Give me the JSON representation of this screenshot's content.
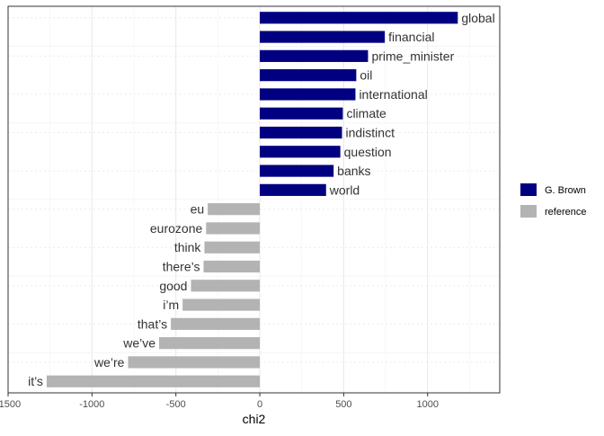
{
  "chart_data": {
    "type": "bar",
    "orientation": "horizontal",
    "xlabel": "chi2",
    "ylabel": "",
    "xlim": [
      -1500,
      1430
    ],
    "xticks": [
      -1500,
      -1000,
      -500,
      0,
      500,
      1000
    ],
    "xtick_labels": [
      "-1500",
      "-1000",
      "-500",
      "0",
      "500",
      "1000"
    ],
    "grid": true,
    "legend_position": "right",
    "categories": [
      "global",
      "financial",
      "prime_minister",
      "oil",
      "international",
      "climate",
      "indistinct",
      "question",
      "banks",
      "world",
      "eu",
      "eurozone",
      "think",
      "there’s",
      "good",
      "i’m",
      "that’s",
      "we’ve",
      "we’re",
      "it’s"
    ],
    "values": [
      1180,
      745,
      645,
      575,
      570,
      495,
      490,
      480,
      440,
      395,
      -310,
      -320,
      -330,
      -335,
      -410,
      -460,
      -530,
      -600,
      -785,
      -1270
    ],
    "groups": [
      "G. Brown",
      "G. Brown",
      "G. Brown",
      "G. Brown",
      "G. Brown",
      "G. Brown",
      "G. Brown",
      "G. Brown",
      "G. Brown",
      "G. Brown",
      "reference",
      "reference",
      "reference",
      "reference",
      "reference",
      "reference",
      "reference",
      "reference",
      "reference",
      "reference"
    ],
    "series": [
      {
        "name": "G. Brown",
        "color": "#000080"
      },
      {
        "name": "reference",
        "color": "#b3b3b3"
      }
    ]
  }
}
